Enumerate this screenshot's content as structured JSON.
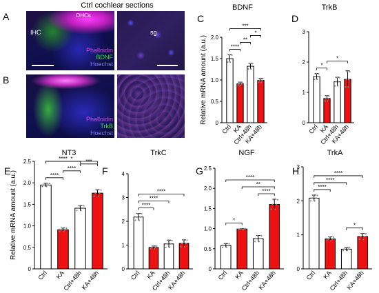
{
  "figure_title": "Ctrl cochlear sections",
  "panel_letters": {
    "A": "A",
    "B": "B",
    "C": "C",
    "D": "D",
    "E": "E",
    "F": "F",
    "G": "G",
    "H": "H"
  },
  "micro": {
    "A": {
      "left_labels": {
        "ihc": "IHC",
        "ohcs": "OHCs"
      },
      "right_labels": {
        "sg": "sg"
      },
      "stains": [
        "Phalloidin",
        "BDNF",
        "Hoechst"
      ],
      "stain_colors": [
        "#e040e0",
        "#40e040",
        "#6a6aff"
      ]
    },
    "B": {
      "stains": [
        "Phalloidin",
        "TrkB",
        "Hoechst"
      ],
      "stain_colors": [
        "#e040e0",
        "#40e040",
        "#6a6aff"
      ]
    }
  },
  "colors": {
    "ctrl_fill": "#ffffff",
    "ka_fill": "#ee1111",
    "bar_edge": "#000000",
    "dot": "#888888"
  },
  "chart_data": [
    {
      "panel": "C",
      "type": "bar",
      "title": "BDNF",
      "ylabel": "Relative mRNA amount (a.u.)",
      "categories": [
        "Ctrl",
        "KA",
        "Ctrl+48h",
        "KA+48h"
      ],
      "values": [
        1.5,
        0.91,
        1.32,
        0.99
      ],
      "errors": [
        0.09,
        0.04,
        0.07,
        0.05
      ],
      "ylim": [
        0,
        2.0
      ],
      "yticks": [
        "0",
        "0.5",
        "1.0",
        "1.5",
        "2.0"
      ],
      "significance": [
        {
          "from": 0,
          "to": 1,
          "label": "****"
        },
        {
          "from": 1,
          "to": 2,
          "label": "**"
        },
        {
          "from": 2,
          "to": 3,
          "label": "*"
        },
        {
          "from": 0,
          "to": 3,
          "label": "***"
        }
      ]
    },
    {
      "panel": "D",
      "type": "bar",
      "title": "TrkB",
      "ylabel": "",
      "categories": [
        "Ctrl",
        "KA",
        "Ctrl+48h",
        "KA+48h"
      ],
      "values": [
        1.52,
        0.8,
        1.35,
        1.43
      ],
      "errors": [
        0.1,
        0.09,
        0.15,
        0.28
      ],
      "ylim": [
        0,
        3
      ],
      "yticks": [
        "0",
        "1",
        "2",
        "3"
      ],
      "significance": [
        {
          "from": 0,
          "to": 1,
          "label": "*"
        },
        {
          "from": 1,
          "to": 3,
          "label": "*"
        }
      ]
    },
    {
      "panel": "E",
      "type": "bar",
      "title": "NT3",
      "ylabel": "Relative mRNA amount (a.u.)",
      "categories": [
        "Ctrl",
        "KA",
        "Ctrl+48h",
        "KA+48h"
      ],
      "values": [
        1.95,
        0.91,
        1.41,
        1.76
      ],
      "errors": [
        0.04,
        0.04,
        0.06,
        0.08
      ],
      "ylim": [
        0,
        2.5
      ],
      "yticks": [
        "0",
        "0.5",
        "1.0",
        "1.5",
        "2.0",
        "2.5"
      ],
      "significance": [
        {
          "from": 0,
          "to": 1,
          "label": "****"
        },
        {
          "from": 1,
          "to": 2,
          "label": "****"
        },
        {
          "from": 2,
          "to": 3,
          "label": "***"
        },
        {
          "from": 0,
          "to": 2,
          "label": "****"
        },
        {
          "from": 0,
          "to": 3,
          "label": "*"
        }
      ]
    },
    {
      "panel": "F",
      "type": "bar",
      "title": "TrkC",
      "ylabel": "",
      "categories": [
        "Ctrl",
        "KA",
        "Ctrl+48h",
        "KA+48h"
      ],
      "values": [
        2.18,
        0.9,
        1.05,
        1.07
      ],
      "errors": [
        0.15,
        0.06,
        0.16,
        0.15
      ],
      "ylim": [
        0,
        4
      ],
      "yticks": [
        "0",
        "1",
        "2",
        "3",
        "4"
      ],
      "significance": [
        {
          "from": 0,
          "to": 1,
          "label": "****"
        },
        {
          "from": 0,
          "to": 2,
          "label": "****"
        },
        {
          "from": 0,
          "to": 3,
          "label": "****"
        }
      ]
    },
    {
      "panel": "G",
      "type": "bar",
      "title": "NGF",
      "ylabel": "",
      "categories": [
        "Ctrl",
        "KA",
        "Ctrl+48h",
        "KA+48h"
      ],
      "values": [
        0.58,
        0.99,
        0.75,
        1.6
      ],
      "errors": [
        0.05,
        0.01,
        0.08,
        0.13
      ],
      "ylim": [
        0,
        2.5
      ],
      "yticks": [
        "0",
        "0.5",
        "1.0",
        "1.5",
        "2.0",
        "2.5"
      ],
      "significance": [
        {
          "from": 0,
          "to": 1,
          "label": "*"
        },
        {
          "from": 2,
          "to": 3,
          "label": "****"
        },
        {
          "from": 1,
          "to": 3,
          "label": "**"
        },
        {
          "from": 0,
          "to": 3,
          "label": "****"
        }
      ]
    },
    {
      "panel": "H",
      "type": "bar",
      "title": "TrkA",
      "ylabel": "",
      "categories": [
        "Ctrl",
        "KA",
        "Ctrl+48h",
        "KA+48h"
      ],
      "values": [
        2.08,
        0.88,
        0.58,
        0.95
      ],
      "errors": [
        0.09,
        0.06,
        0.05,
        0.09
      ],
      "ylim": [
        0,
        3
      ],
      "yticks": [
        "0",
        "1",
        "2",
        "3"
      ],
      "significance": [
        {
          "from": 0,
          "to": 1,
          "label": "****"
        },
        {
          "from": 0,
          "to": 2,
          "label": "****"
        },
        {
          "from": 2,
          "to": 3,
          "label": "*"
        },
        {
          "from": 0,
          "to": 3,
          "label": "****"
        }
      ]
    }
  ]
}
